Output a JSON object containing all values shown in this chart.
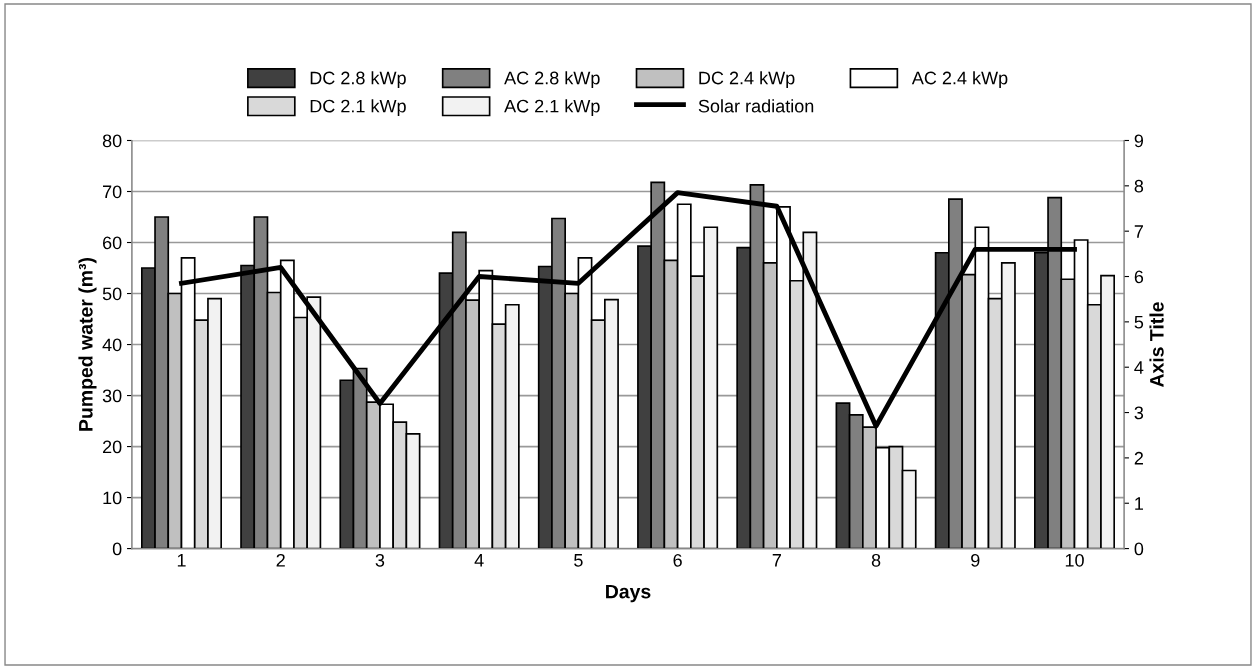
{
  "chart_data": {
    "type": "bar",
    "xlabel": "Days",
    "ylabel": "Pumped water (m³)",
    "y2label": "Axis Title",
    "categories": [
      "1",
      "2",
      "3",
      "4",
      "5",
      "6",
      "7",
      "8",
      "9",
      "10"
    ],
    "series": [
      {
        "name": "DC 2.8 kWp",
        "color": "#404040",
        "values": [
          55,
          55.5,
          33,
          54,
          55.3,
          59.3,
          59,
          28.5,
          58,
          58
        ]
      },
      {
        "name": "AC 2.8 kWp",
        "color": "#808080",
        "values": [
          65,
          65,
          35.3,
          62,
          64.7,
          71.8,
          71.3,
          26.2,
          68.5,
          68.8
        ]
      },
      {
        "name": "DC 2.4 kWp",
        "color": "#c0c0c0",
        "values": [
          50,
          50.2,
          28.7,
          48.7,
          50,
          56.5,
          56,
          23.8,
          53.7,
          52.8
        ]
      },
      {
        "name": "AC 2.4 kWp",
        "color": "#ffffff",
        "values": [
          57,
          56.5,
          28.3,
          54.5,
          57,
          67.5,
          67,
          19.8,
          63,
          60.5
        ]
      },
      {
        "name": "DC 2.1 kWp",
        "color": "#d9d9d9",
        "values": [
          44.8,
          45.3,
          24.8,
          44,
          44.8,
          53.4,
          52.5,
          20,
          49,
          47.8
        ]
      },
      {
        "name": "AC 2.1 kWp",
        "color": "#f2f2f2",
        "values": [
          49,
          49.3,
          22.5,
          47.8,
          48.8,
          63,
          62,
          15.3,
          56,
          53.5
        ]
      },
      {
        "name": "Solar radiation",
        "type": "line",
        "axis": "y2",
        "color": "#000000",
        "values": [
          5.85,
          6.2,
          3.2,
          6.0,
          5.85,
          7.85,
          7.55,
          2.7,
          6.6,
          6.6
        ]
      }
    ],
    "ylim": [
      0,
      80
    ],
    "yticks": [
      0,
      10,
      20,
      30,
      40,
      50,
      60,
      70,
      80
    ],
    "y2lim": [
      0,
      9
    ],
    "y2ticks": [
      0,
      1,
      2,
      3,
      4,
      5,
      6,
      7,
      8,
      9
    ],
    "grid": "y",
    "legend": "top",
    "marker": "none",
    "line_style": "solid"
  }
}
